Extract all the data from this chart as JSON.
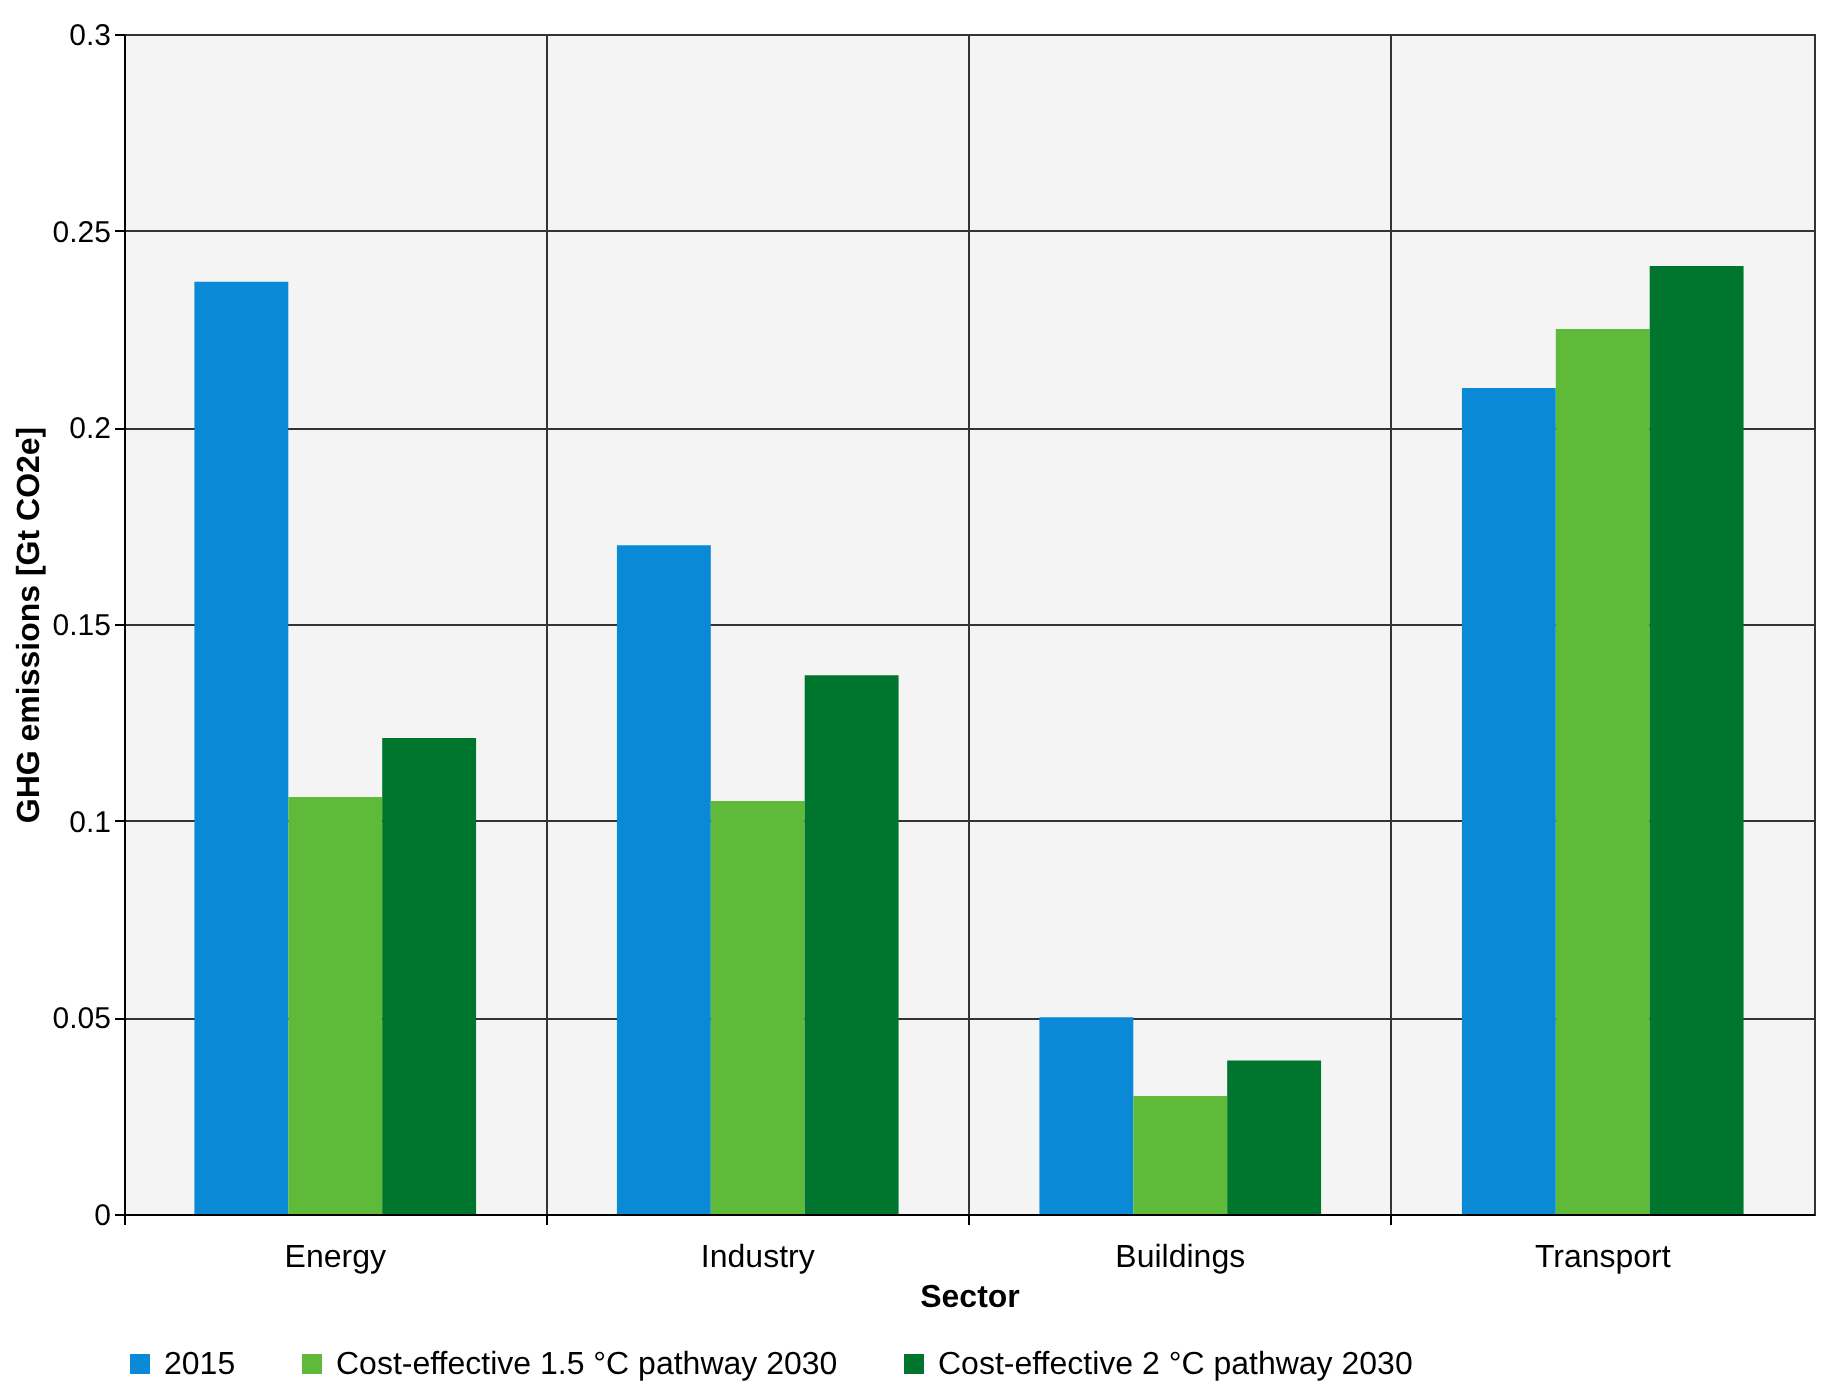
{
  "chart_data": {
    "type": "bar",
    "xlabel": "Sector",
    "ylabel": "GHG emissions  [Gt CO2e]",
    "categories": [
      "Energy",
      "Industry",
      "Buildings",
      "Transport"
    ],
    "series": [
      {
        "name": "2015",
        "color": "#0a8ad6",
        "values": [
          0.237,
          0.17,
          0.05,
          0.21
        ]
      },
      {
        "name": "Cost-effective 1.5 °C pathway 2030",
        "color": "#5fba3a",
        "values": [
          0.106,
          0.105,
          0.03,
          0.225
        ]
      },
      {
        "name": "Cost-effective 2 °C pathway 2030",
        "color": "#00752e",
        "values": [
          0.121,
          0.137,
          0.039,
          0.241
        ]
      }
    ],
    "ylim": [
      0,
      0.3
    ],
    "yticks": [
      0,
      0.05,
      0.1,
      0.15,
      0.2,
      0.25,
      0.3
    ],
    "grid": true,
    "legend": "bottom"
  }
}
